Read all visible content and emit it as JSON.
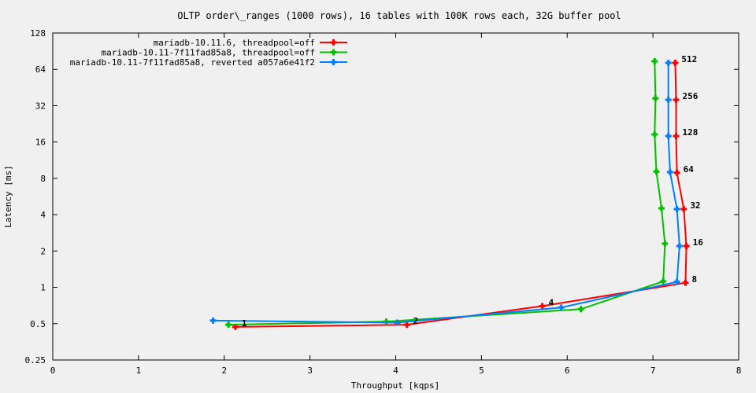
{
  "chart_data": {
    "type": "line",
    "title": "OLTP order\\_ranges (1000 rows), 16 tables with 100K rows each, 32G buffer pool",
    "xlabel": "Throughput [kqps]",
    "ylabel": "Latency [ms]",
    "xlim": [
      0,
      8
    ],
    "ylim": [
      0.25,
      128
    ],
    "yscale": "log2",
    "xticks": [
      "0",
      "1",
      "2",
      "3",
      "4",
      "5",
      "6",
      "7",
      "8"
    ],
    "yticks": [
      "0.25",
      "0.5",
      "1",
      "2",
      "4",
      "8",
      "16",
      "32",
      "64",
      "128"
    ],
    "legend_position": "top-left",
    "point_labels": [
      "1",
      "2",
      "4",
      "8",
      "16",
      "32",
      "64",
      "128",
      "256",
      "512"
    ],
    "series": [
      {
        "name": "mariadb-10.11.6, threadpool=off",
        "color": "#ff0000",
        "x": [
          2.13,
          4.13,
          5.71,
          7.38,
          7.39,
          7.36,
          7.28,
          7.27,
          7.27,
          7.26
        ],
        "y": [
          0.47,
          0.49,
          0.7,
          1.09,
          2.2,
          4.45,
          8.9,
          17.9,
          35.8,
          72.4
        ]
      },
      {
        "name": "mariadb-10.11-7f11fad85a8, threadpool=off",
        "color": "#00c000",
        "x": [
          2.05,
          3.89,
          6.16,
          7.12,
          7.14,
          7.1,
          7.04,
          7.02,
          7.03,
          7.02
        ],
        "y": [
          0.49,
          0.52,
          0.66,
          1.12,
          2.3,
          4.52,
          9.1,
          18.5,
          36.8,
          74.6
        ]
      },
      {
        "name": "mariadb-10.11-7f11fad85a8, reverted a057a6e41f2",
        "color": "#0080ff",
        "x": [
          1.87,
          4.02,
          5.93,
          7.28,
          7.31,
          7.28,
          7.2,
          7.18,
          7.18,
          7.18
        ],
        "y": [
          0.53,
          0.51,
          0.68,
          1.11,
          2.2,
          4.45,
          9.0,
          17.9,
          35.8,
          72.4
        ]
      }
    ]
  }
}
